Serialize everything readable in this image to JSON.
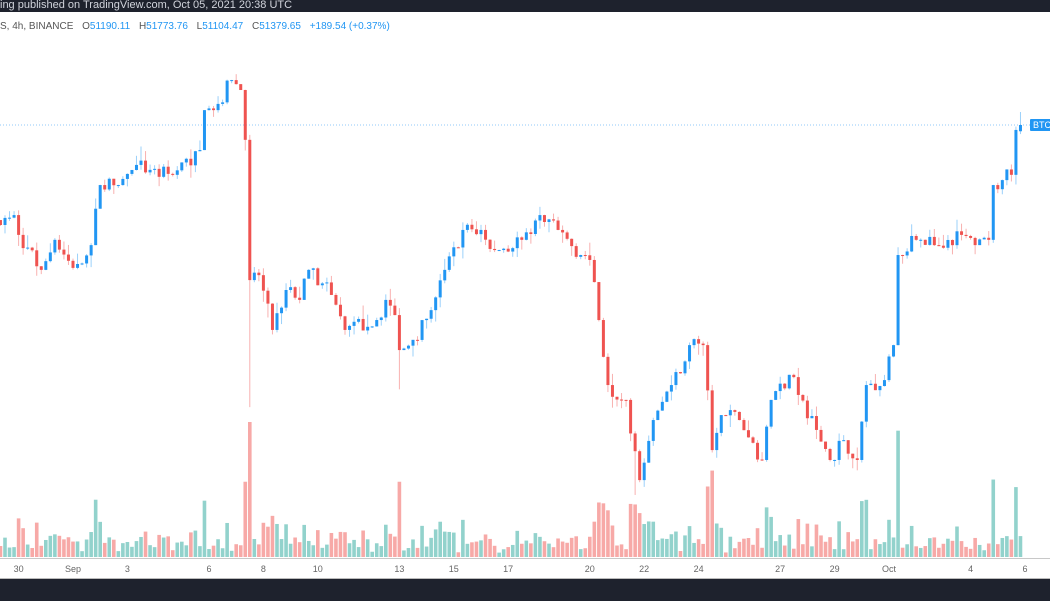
{
  "header": {
    "published": "ing published on TradingView.com, Oct 05, 2021 20:38 UTC"
  },
  "legend": {
    "symbol": "S, 4h, BINANCE",
    "open_label": "O",
    "open": "51190.11",
    "high_label": "H",
    "high": "51773.76",
    "low_label": "L",
    "low": "51104.47",
    "close_label": "C",
    "close": "51379.65",
    "change": "+189.54 (+0.37%)"
  },
  "price_tag": "BTC",
  "colors": {
    "up": "#2196f3",
    "down": "#ef5350",
    "vol_up": "#26a69a",
    "vol_down": "#ef5350",
    "price_line": "#2196f3",
    "bars": "#1e222d"
  },
  "chart_data": {
    "type": "candlestick",
    "interval": "4h",
    "x_ticks": [
      {
        "label": "30",
        "date": "2021-08-30"
      },
      {
        "label": "Sep",
        "date": "2021-09-01"
      },
      {
        "label": "3",
        "date": "2021-09-03"
      },
      {
        "label": "6",
        "date": "2021-09-06"
      },
      {
        "label": "8",
        "date": "2021-09-08"
      },
      {
        "label": "10",
        "date": "2021-09-10"
      },
      {
        "label": "13",
        "date": "2021-09-13"
      },
      {
        "label": "15",
        "date": "2021-09-15"
      },
      {
        "label": "17",
        "date": "2021-09-17"
      },
      {
        "label": "20",
        "date": "2021-09-20"
      },
      {
        "label": "22",
        "date": "2021-09-22"
      },
      {
        "label": "24",
        "date": "2021-09-24"
      },
      {
        "label": "27",
        "date": "2021-09-27"
      },
      {
        "label": "29",
        "date": "2021-09-29"
      },
      {
        "label": "Oct",
        "date": "2021-10-01"
      },
      {
        "label": "4",
        "date": "2021-10-04"
      },
      {
        "label": "6",
        "date": "2021-10-06"
      }
    ],
    "close_path": [
      [
        "2021-08-29T08:00",
        48350
      ],
      [
        "2021-08-29T20:00",
        48650
      ],
      [
        "2021-08-30T00:00",
        48050
      ],
      [
        "2021-08-30T20:00",
        46990
      ],
      [
        "2021-08-31T08:00",
        47900
      ],
      [
        "2021-09-01T00:00",
        47050
      ],
      [
        "2021-09-01T16:00",
        47740
      ],
      [
        "2021-09-02T00:00",
        49560
      ],
      [
        "2021-09-02T16:00",
        49560
      ],
      [
        "2021-09-03T08:00",
        50170
      ],
      [
        "2021-09-03T20:00",
        50020
      ],
      [
        "2021-09-04T16:00",
        49870
      ],
      [
        "2021-09-05T16:00",
        50620
      ],
      [
        "2021-09-05T20:00",
        51830
      ],
      [
        "2021-09-06T04:00",
        51830
      ],
      [
        "2021-09-06T20:00",
        52740
      ],
      [
        "2021-09-07T04:00",
        52440
      ],
      [
        "2021-09-07T08:00",
        50930
      ],
      [
        "2021-09-07T12:00",
        46680
      ],
      [
        "2021-09-07T20:00",
        46830
      ],
      [
        "2021-09-08T08:00",
        45170
      ],
      [
        "2021-09-08T20:00",
        46380
      ],
      [
        "2021-09-09T08:00",
        46080
      ],
      [
        "2021-09-09T16:00",
        46990
      ],
      [
        "2021-09-10T12:00",
        46230
      ],
      [
        "2021-09-11T00:00",
        45170
      ],
      [
        "2021-09-12T04:00",
        45470
      ],
      [
        "2021-09-12T12:00",
        46080
      ],
      [
        "2021-09-12T20:00",
        45620
      ],
      [
        "2021-09-13T00:00",
        44560
      ],
      [
        "2021-09-13T12:00",
        44870
      ],
      [
        "2021-09-14T04:00",
        45770
      ],
      [
        "2021-09-14T16:00",
        46990
      ],
      [
        "2021-09-15T08:00",
        48200
      ],
      [
        "2021-09-16T00:00",
        48200
      ],
      [
        "2021-09-16T12:00",
        47590
      ],
      [
        "2021-09-17T12:00",
        47900
      ],
      [
        "2021-09-18T04:00",
        48650
      ],
      [
        "2021-09-18T20:00",
        48200
      ],
      [
        "2021-09-19T16:00",
        47440
      ],
      [
        "2021-09-20T00:00",
        47290
      ],
      [
        "2021-09-20T08:00",
        45470
      ],
      [
        "2021-09-20T16:00",
        43500
      ],
      [
        "2021-09-21T08:00",
        43050
      ],
      [
        "2021-09-21T20:00",
        40620
      ],
      [
        "2021-09-22T08:00",
        42440
      ],
      [
        "2021-09-23T00:00",
        43500
      ],
      [
        "2021-09-23T16:00",
        44710
      ],
      [
        "2021-09-24T04:00",
        44710
      ],
      [
        "2021-09-24T12:00",
        41530
      ],
      [
        "2021-09-24T20:00",
        42590
      ],
      [
        "2021-09-25T12:00",
        42440
      ],
      [
        "2021-09-26T08:00",
        41230
      ],
      [
        "2021-09-26T16:00",
        43050
      ],
      [
        "2021-09-27T08:00",
        43810
      ],
      [
        "2021-09-27T16:00",
        43200
      ],
      [
        "2021-09-28T08:00",
        42140
      ],
      [
        "2021-09-28T20:00",
        41230
      ],
      [
        "2021-09-29T08:00",
        41830
      ],
      [
        "2021-09-29T20:00",
        41230
      ],
      [
        "2021-09-30T04:00",
        43500
      ],
      [
        "2021-09-30T20:00",
        43650
      ],
      [
        "2021-10-01T04:00",
        44710
      ],
      [
        "2021-10-01T08:00",
        47440
      ],
      [
        "2021-10-02T00:00",
        47900
      ],
      [
        "2021-10-02T16:00",
        47740
      ],
      [
        "2021-10-03T16:00",
        48050
      ],
      [
        "2021-10-04T04:00",
        47740
      ],
      [
        "2021-10-04T16:00",
        47900
      ],
      [
        "2021-10-04T20:00",
        49560
      ],
      [
        "2021-10-05T04:00",
        49710
      ],
      [
        "2021-10-05T12:00",
        49870
      ],
      [
        "2021-10-05T16:00",
        51230
      ],
      [
        "2021-10-05T20:00",
        51379.65
      ]
    ],
    "wick_extremes": [
      {
        "t": "2021-09-07T12:00",
        "low": 42830
      },
      {
        "t": "2021-09-07T00:00",
        "high": 52920
      },
      {
        "t": "2021-09-13T00:00",
        "low": 43370
      },
      {
        "t": "2021-09-21T16:00",
        "low": 40170
      },
      {
        "t": "2021-10-05T20:00",
        "high": 51773.76
      }
    ],
    "last_candle": {
      "t": "2021-10-05T20:00",
      "open": 51190.11,
      "high": 51773.76,
      "low": 51104.47,
      "close": 51379.65
    },
    "last_price": 51379.65,
    "grid": false
  }
}
